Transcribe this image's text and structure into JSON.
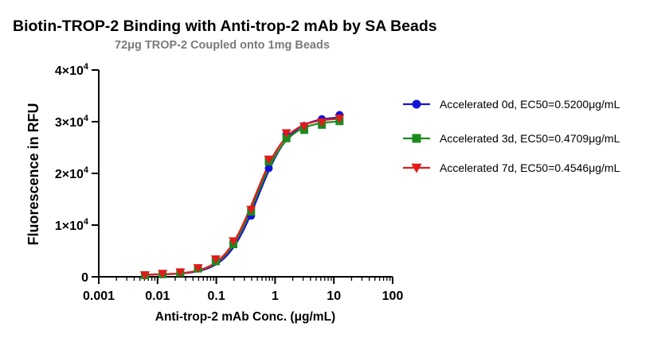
{
  "chart_data": {
    "type": "scatter",
    "title": "Biotin-TROP-2 Binding with Anti-trop-2 mAb by SA Beads",
    "subtitle": "72μg TROP-2 Coupled onto 1mg Beads",
    "xlabel": "Anti-trop-2 mAb Conc. (μg/mL)",
    "ylabel": "Fluorescence in RFU",
    "x_scale": "log",
    "xlim": [
      0.001,
      100
    ],
    "ylim": [
      0,
      40000
    ],
    "x_ticks": [
      0.001,
      0.01,
      0.1,
      1,
      10,
      100
    ],
    "x_tick_labels": [
      "0.001",
      "0.01",
      "0.1",
      "1",
      "10",
      "100"
    ],
    "y_ticks": [
      0,
      10000,
      20000,
      30000,
      40000
    ],
    "y_tick_labels": [
      {
        "base": "0",
        "exp": ""
      },
      {
        "base": "1×10",
        "exp": "4"
      },
      {
        "base": "2×10",
        "exp": "4"
      },
      {
        "base": "3×10",
        "exp": "4"
      },
      {
        "base": "4×10",
        "exp": "4"
      }
    ],
    "grid": false,
    "legend_position": "right",
    "fit": "4PL",
    "x": [
      0.0061,
      0.0122,
      0.0244,
      0.0488,
      0.0977,
      0.195,
      0.391,
      0.781,
      1.56,
      3.13,
      6.25,
      12.5
    ],
    "series": [
      {
        "name": "Accelerated 0d,  EC50=0.5200μg/mL",
        "color": "#1515d6",
        "marker": "circle",
        "ec50": 0.52,
        "top": 31000,
        "bottom": 400,
        "hill": 1.6,
        "values": [
          300,
          500,
          800,
          1600,
          3100,
          6300,
          11800,
          21000,
          27500,
          29200,
          30500,
          31300
        ]
      },
      {
        "name": "Accelerated 3d,  EC50=0.4709μg/mL",
        "color": "#1d8a1d",
        "marker": "square",
        "ec50": 0.4709,
        "top": 30200,
        "bottom": 400,
        "hill": 1.6,
        "values": [
          300,
          500,
          800,
          1600,
          3000,
          6300,
          12600,
          22300,
          26800,
          28400,
          29400,
          30100
        ]
      },
      {
        "name": "Accelerated 7d,  EC50=0.4546μg/mL",
        "color": "#e31a1a",
        "marker": "triangle-down",
        "ec50": 0.4546,
        "top": 30700,
        "bottom": 400,
        "hill": 1.6,
        "values": [
          300,
          600,
          900,
          1700,
          3400,
          6900,
          13000,
          22700,
          27800,
          29100,
          29900,
          30600
        ]
      }
    ]
  }
}
